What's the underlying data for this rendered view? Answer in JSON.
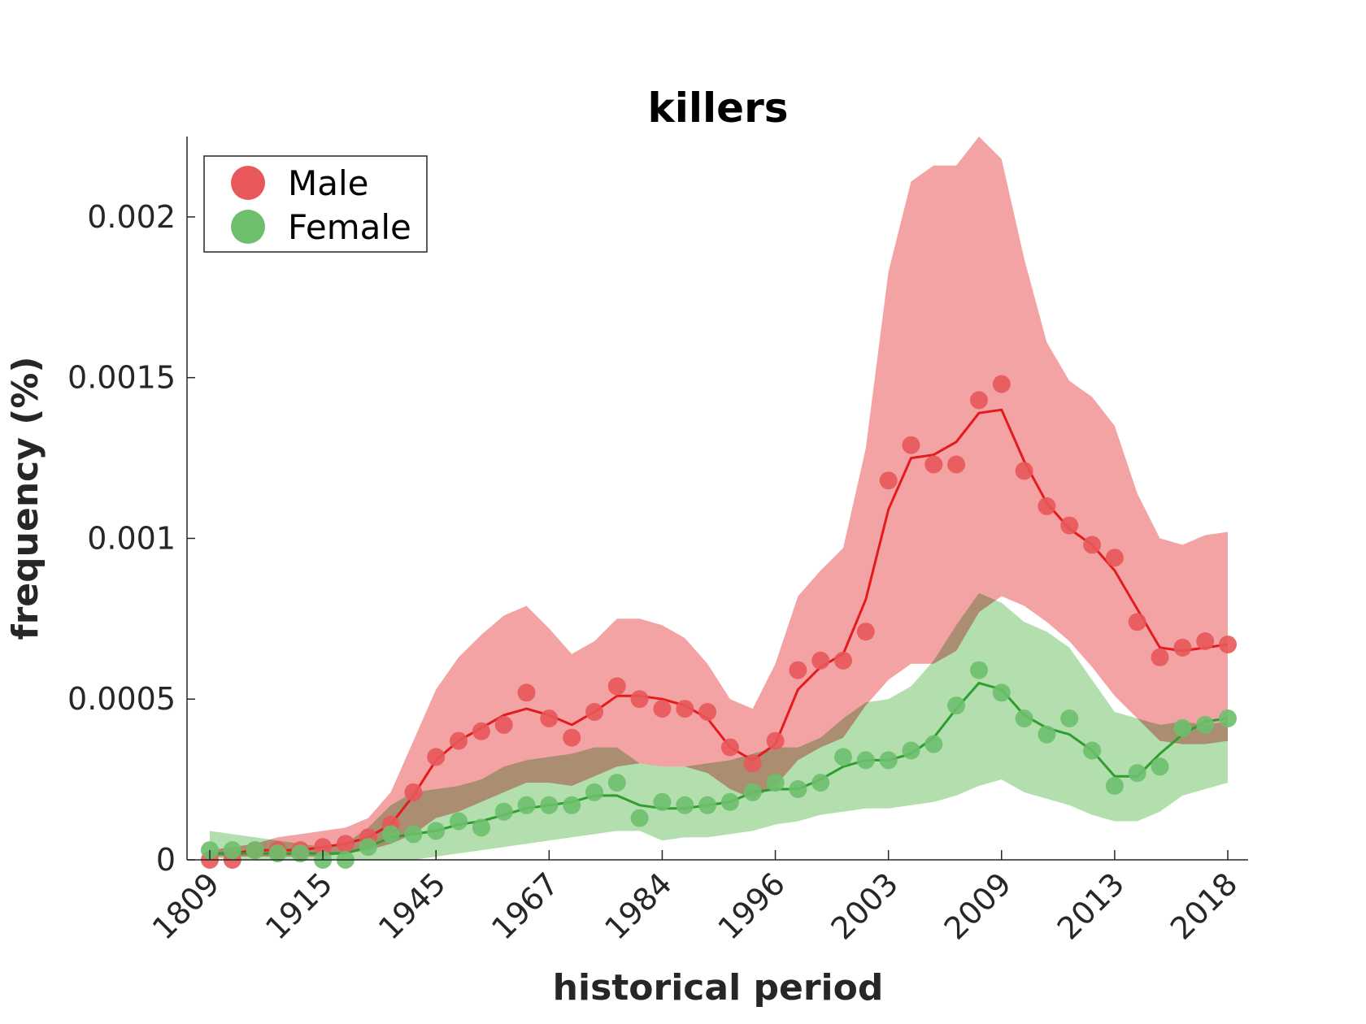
{
  "chart_data": {
    "type": "line",
    "title": "killers",
    "xlabel": "historical period",
    "ylabel": "frequency (%)",
    "ylim": [
      0,
      0.00225
    ],
    "y_ticks": [
      {
        "value": 0,
        "label": "0"
      },
      {
        "value": 0.0005,
        "label": "0.0005"
      },
      {
        "value": 0.001,
        "label": "0.001"
      },
      {
        "value": 0.0015,
        "label": "0.0015"
      },
      {
        "value": 0.002,
        "label": "0.002"
      }
    ],
    "x_ticks": [
      {
        "index": 0,
        "label": "1809"
      },
      {
        "index": 5,
        "label": "1915"
      },
      {
        "index": 10,
        "label": "1945"
      },
      {
        "index": 15,
        "label": "1967"
      },
      {
        "index": 20,
        "label": "1984"
      },
      {
        "index": 25,
        "label": "1996"
      },
      {
        "index": 30,
        "label": "2003"
      },
      {
        "index": 35,
        "label": "2009"
      },
      {
        "index": 40,
        "label": "2013"
      },
      {
        "index": 45,
        "label": "2018"
      }
    ],
    "legend_position": "top-left",
    "grid": false,
    "series": [
      {
        "name": "Male",
        "color": "#e41a1c",
        "marker_color": "#e8585a",
        "band_color": "#f4a3a5",
        "points": [
          0.0,
          0.0,
          3e-05,
          3e-05,
          3e-05,
          4e-05,
          5e-05,
          7e-05,
          0.00011,
          0.00021,
          0.00032,
          0.00037,
          0.0004,
          0.00042,
          0.00052,
          0.00044,
          0.00038,
          0.00046,
          0.00054,
          0.0005,
          0.00047,
          0.00047,
          0.00046,
          0.00035,
          0.0003,
          0.00037,
          0.00059,
          0.00062,
          0.00062,
          0.00071,
          0.00118,
          0.00129,
          0.00123,
          0.00123,
          0.00143,
          0.00148,
          0.00121,
          0.0011,
          0.00104,
          0.00098,
          0.00094,
          0.00074,
          0.00063,
          0.00066,
          0.00068,
          0.00067
        ],
        "trend": [
          2e-05,
          2e-05,
          3e-05,
          3e-05,
          3e-05,
          4e-05,
          5e-05,
          7e-05,
          0.00011,
          0.0002,
          0.00031,
          0.00037,
          0.00041,
          0.00045,
          0.00047,
          0.00045,
          0.00042,
          0.00046,
          0.00051,
          0.00051,
          0.0005,
          0.00048,
          0.00044,
          0.00035,
          0.00031,
          0.00036,
          0.00053,
          0.0006,
          0.00064,
          0.00081,
          0.00109,
          0.00125,
          0.00126,
          0.0013,
          0.00139,
          0.0014,
          0.00124,
          0.00111,
          0.00103,
          0.00098,
          0.0009,
          0.00078,
          0.00066,
          0.00065,
          0.00066,
          0.00067
        ],
        "band_upper": [
          3e-05,
          4e-05,
          5e-05,
          7e-05,
          8e-05,
          9e-05,
          0.0001,
          0.00013,
          0.00021,
          0.00037,
          0.00053,
          0.00063,
          0.0007,
          0.00076,
          0.00079,
          0.00072,
          0.00064,
          0.00068,
          0.00075,
          0.00075,
          0.00073,
          0.00069,
          0.00061,
          0.0005,
          0.00047,
          0.00061,
          0.00082,
          0.0009,
          0.00097,
          0.00128,
          0.00183,
          0.00211,
          0.00216,
          0.00216,
          0.00225,
          0.00218,
          0.00187,
          0.00161,
          0.00149,
          0.00144,
          0.00135,
          0.00114,
          0.001,
          0.00098,
          0.00101,
          0.00102
        ],
        "band_lower": [
          1e-05,
          1e-05,
          1e-05,
          1e-05,
          1e-05,
          1e-05,
          2e-05,
          3e-05,
          5e-05,
          8e-05,
          0.00013,
          0.00015,
          0.00018,
          0.00021,
          0.00024,
          0.00024,
          0.00023,
          0.00026,
          0.00029,
          0.0003,
          0.00029,
          0.00029,
          0.00027,
          0.00022,
          0.00019,
          0.00023,
          0.00031,
          0.00035,
          0.00038,
          0.00048,
          0.00056,
          0.00061,
          0.00061,
          0.00065,
          0.00077,
          0.00082,
          0.00079,
          0.00074,
          0.00068,
          0.0006,
          0.00051,
          0.00044,
          0.00037,
          0.00036,
          0.00036,
          0.00037
        ]
      },
      {
        "name": "Female",
        "color": "#2e9e2e",
        "marker_color": "#6dbf6d",
        "band_color": "#a6d9a0",
        "points": [
          3e-05,
          3e-05,
          3e-05,
          2e-05,
          2e-05,
          0.0,
          0.0,
          4e-05,
          8e-05,
          8e-05,
          9e-05,
          0.00012,
          0.0001,
          0.00015,
          0.00017,
          0.00017,
          0.00017,
          0.00021,
          0.00024,
          0.00013,
          0.00018,
          0.00017,
          0.00017,
          0.00018,
          0.00021,
          0.00024,
          0.00022,
          0.00024,
          0.00032,
          0.00031,
          0.00031,
          0.00034,
          0.00036,
          0.00048,
          0.00059,
          0.00052,
          0.00044,
          0.00039,
          0.00044,
          0.00034,
          0.00023,
          0.00027,
          0.00029,
          0.00041,
          0.00042,
          0.00044
        ],
        "trend": [
          2e-05,
          2e-05,
          2e-05,
          2e-05,
          2e-05,
          2e-05,
          2e-05,
          4e-05,
          7e-05,
          8e-05,
          9e-05,
          0.00011,
          0.00012,
          0.00014,
          0.00016,
          0.00017,
          0.00018,
          0.0002,
          0.0002,
          0.00017,
          0.00016,
          0.00016,
          0.00017,
          0.00018,
          0.00021,
          0.00022,
          0.00022,
          0.00025,
          0.00029,
          0.00031,
          0.00031,
          0.00033,
          0.00038,
          0.00047,
          0.00055,
          0.00053,
          0.00045,
          0.00041,
          0.00039,
          0.00034,
          0.00026,
          0.00026,
          0.00033,
          0.00039,
          0.00043,
          0.00044
        ],
        "band_upper": [
          9e-05,
          8e-05,
          7e-05,
          6e-05,
          5e-05,
          4e-05,
          5e-05,
          0.0001,
          0.00017,
          0.00021,
          0.00022,
          0.00023,
          0.00025,
          0.00029,
          0.00031,
          0.00032,
          0.00033,
          0.00035,
          0.00035,
          0.0003,
          0.00029,
          0.00029,
          0.0003,
          0.00031,
          0.00033,
          0.00035,
          0.00035,
          0.00038,
          0.00044,
          0.00049,
          0.0005,
          0.00054,
          0.00062,
          0.00073,
          0.00083,
          0.0008,
          0.00074,
          0.00071,
          0.00066,
          0.00056,
          0.00046,
          0.00044,
          0.00042,
          0.00043,
          0.00042,
          0.00043
        ],
        "band_lower": [
          1e-05,
          0.0,
          0.0,
          0.0,
          0.0,
          0.0,
          0.0,
          0.0,
          0.0,
          0.0,
          1e-05,
          2e-05,
          3e-05,
          4e-05,
          5e-05,
          6e-05,
          7e-05,
          8e-05,
          9e-05,
          9e-05,
          6e-05,
          7e-05,
          7e-05,
          8e-05,
          9e-05,
          0.00011,
          0.00012,
          0.00014,
          0.00015,
          0.00016,
          0.00016,
          0.00017,
          0.00018,
          0.0002,
          0.00023,
          0.00025,
          0.00021,
          0.00019,
          0.00017,
          0.00014,
          0.00012,
          0.00012,
          0.00015,
          0.0002,
          0.00022,
          0.00024
        ]
      }
    ]
  }
}
